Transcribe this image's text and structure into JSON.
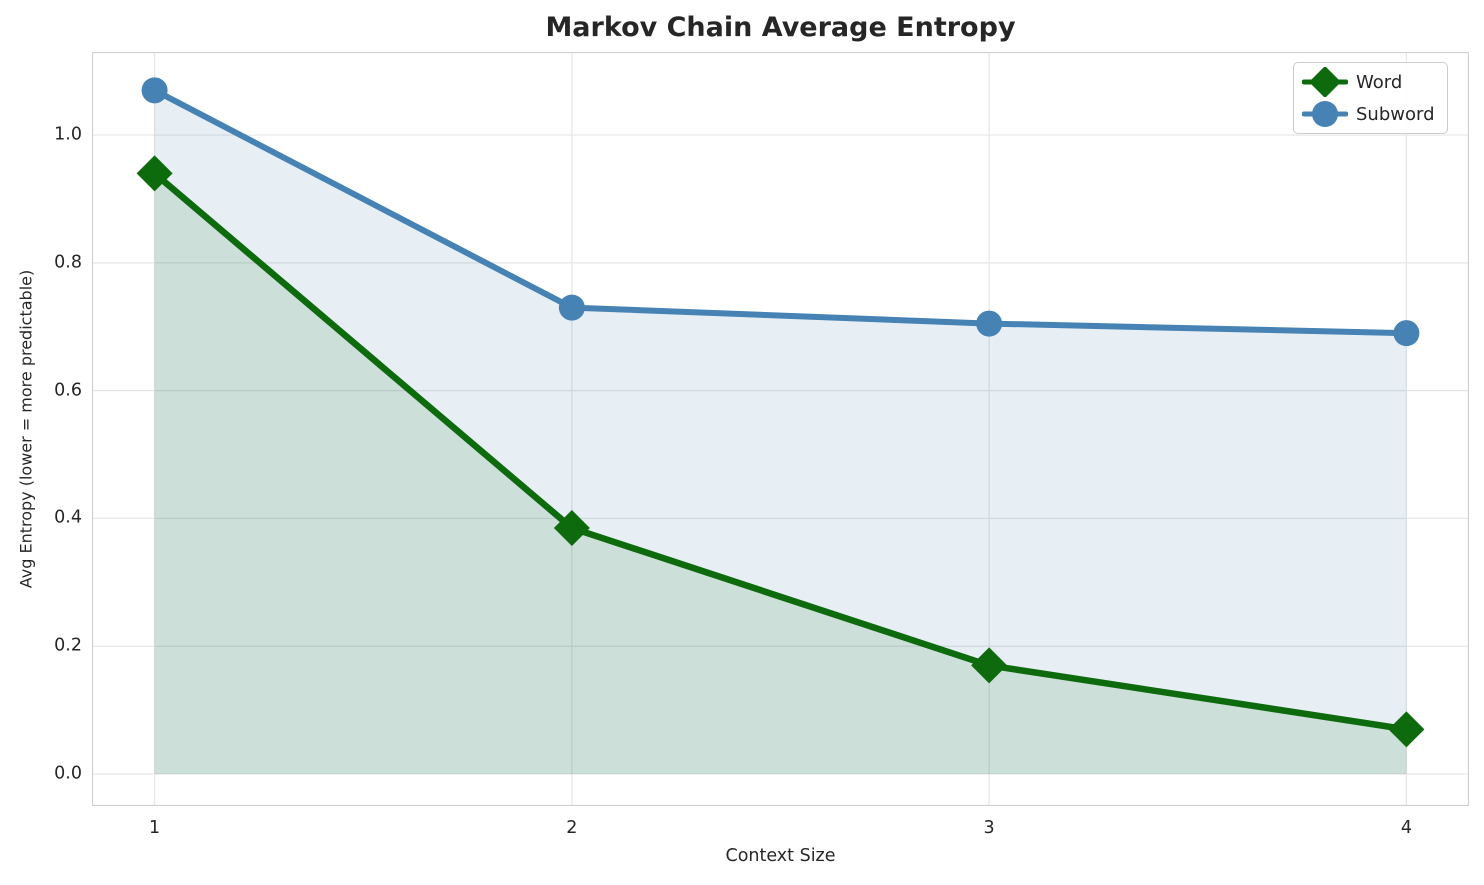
{
  "chart_data": {
    "type": "line",
    "title": "Markov Chain Average Entropy",
    "xlabel": "Context Size",
    "ylabel": "Avg Entropy (lower = more predictable)",
    "x": [
      1,
      2,
      3,
      4
    ],
    "series": [
      {
        "name": "Word",
        "values": [
          0.94,
          0.385,
          0.17,
          0.07
        ],
        "color": "#0d6a0d",
        "fill": "rgba(13,106,13,0.12)",
        "marker": "diamond",
        "marker_size": 18,
        "line_width": 6.5
      },
      {
        "name": "Subword",
        "values": [
          1.07,
          0.73,
          0.705,
          0.69
        ],
        "color": "#4682b4",
        "fill": "rgba(70,130,180,0.13)",
        "marker": "circle",
        "marker_size": 13,
        "line_width": 6
      }
    ],
    "xlim": [
      0.85,
      4.15
    ],
    "ylim": [
      -0.05,
      1.13
    ],
    "xticks": [
      "1",
      "2",
      "3",
      "4"
    ],
    "xtick_values": [
      1,
      2,
      3,
      4
    ],
    "yticks": [
      "0.0",
      "0.2",
      "0.4",
      "0.6",
      "0.8",
      "1.0"
    ],
    "ytick_values": [
      0.0,
      0.2,
      0.4,
      0.6,
      0.8,
      1.0
    ],
    "grid": true,
    "grid_color": "#e6e6e6",
    "spine_color": "#cfcfcf",
    "legend_position": "upper right",
    "legend": [
      "Word",
      "Subword"
    ]
  }
}
